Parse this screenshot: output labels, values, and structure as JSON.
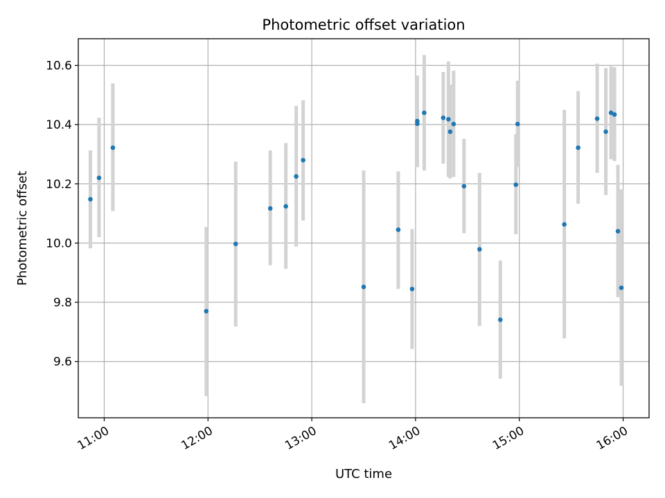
{
  "chart_data": {
    "type": "scatter",
    "title": "Photometric offset variation",
    "xlabel": "UTC time",
    "ylabel": "Photometric offset",
    "x_is_time": true,
    "xlim": [
      "10:45",
      "16:15"
    ],
    "ylim": [
      9.41,
      10.69
    ],
    "x_ticks": [
      "11:00",
      "12:00",
      "13:00",
      "14:00",
      "15:00",
      "16:00"
    ],
    "y_ticks": [
      9.6,
      9.8,
      10.0,
      10.2,
      10.4,
      10.6
    ],
    "y_tick_labels": [
      "9.6",
      "9.8",
      "10.0",
      "10.2",
      "10.4",
      "10.6"
    ],
    "grid": true,
    "point_color": "#1f77b4",
    "errorbar_color": "#d3d3d3",
    "series": [
      {
        "points": [
          {
            "x": "10:52",
            "y": 10.148,
            "lo": 9.982,
            "hi": 10.313
          },
          {
            "x": "10:57",
            "y": 10.22,
            "lo": 10.02,
            "hi": 10.423
          },
          {
            "x": "11:05",
            "y": 10.322,
            "lo": 10.108,
            "hi": 10.539
          },
          {
            "x": "11:59",
            "y": 9.77,
            "lo": 9.483,
            "hi": 10.054
          },
          {
            "x": "12:16",
            "y": 9.997,
            "lo": 9.718,
            "hi": 10.275
          },
          {
            "x": "12:36",
            "y": 10.117,
            "lo": 9.925,
            "hi": 10.313
          },
          {
            "x": "12:45",
            "y": 10.124,
            "lo": 9.913,
            "hi": 10.338
          },
          {
            "x": "12:51",
            "y": 10.225,
            "lo": 9.988,
            "hi": 10.463
          },
          {
            "x": "12:55",
            "y": 10.28,
            "lo": 10.076,
            "hi": 10.482
          },
          {
            "x": "13:30",
            "y": 9.852,
            "lo": 9.459,
            "hi": 10.245
          },
          {
            "x": "13:50",
            "y": 10.045,
            "lo": 9.845,
            "hi": 10.242
          },
          {
            "x": "13:58",
            "y": 9.845,
            "lo": 9.642,
            "hi": 10.047
          },
          {
            "x": "14:01",
            "y": 10.412,
            "lo": 10.256,
            "hi": 10.566
          },
          {
            "x": "14:01",
            "y": 10.403,
            "lo": 10.26,
            "hi": 10.545
          },
          {
            "x": "14:05",
            "y": 10.44,
            "lo": 10.245,
            "hi": 10.635
          },
          {
            "x": "14:16",
            "y": 10.423,
            "lo": 10.268,
            "hi": 10.578
          },
          {
            "x": "14:19",
            "y": 10.418,
            "lo": 10.223,
            "hi": 10.613
          },
          {
            "x": "14:20",
            "y": 10.376,
            "lo": 10.218,
            "hi": 10.535
          },
          {
            "x": "14:22",
            "y": 10.402,
            "lo": 10.223,
            "hi": 10.582
          },
          {
            "x": "14:28",
            "y": 10.192,
            "lo": 10.033,
            "hi": 10.352
          },
          {
            "x": "14:37",
            "y": 9.979,
            "lo": 9.72,
            "hi": 10.237
          },
          {
            "x": "14:49",
            "y": 9.741,
            "lo": 9.542,
            "hi": 9.941
          },
          {
            "x": "14:58",
            "y": 10.197,
            "lo": 10.03,
            "hi": 10.368
          },
          {
            "x": "14:59",
            "y": 10.402,
            "lo": 10.257,
            "hi": 10.548
          },
          {
            "x": "15:26",
            "y": 10.063,
            "lo": 9.678,
            "hi": 10.45
          },
          {
            "x": "15:34",
            "y": 10.322,
            "lo": 10.133,
            "hi": 10.513
          },
          {
            "x": "15:45",
            "y": 10.42,
            "lo": 10.237,
            "hi": 10.606
          },
          {
            "x": "15:50",
            "y": 10.376,
            "lo": 10.162,
            "hi": 10.591
          },
          {
            "x": "15:53",
            "y": 10.44,
            "lo": 10.283,
            "hi": 10.597
          },
          {
            "x": "15:55",
            "y": 10.434,
            "lo": 10.277,
            "hi": 10.594
          },
          {
            "x": "15:57",
            "y": 10.04,
            "lo": 9.817,
            "hi": 10.264
          },
          {
            "x": "15:59",
            "y": 9.849,
            "lo": 9.518,
            "hi": 10.181
          }
        ]
      }
    ]
  }
}
